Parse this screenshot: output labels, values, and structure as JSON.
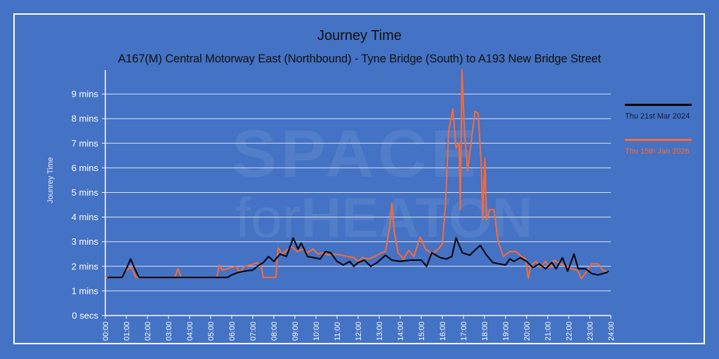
{
  "title": "Journey Time",
  "subtitle": "A167(M) Central Motorway East (Northbound) - Tyne Bridge (South) to A193 New Bridge Street",
  "watermark": {
    "line1": "SPACE",
    "line2_thin": "for",
    "line2_bold": "HEATON"
  },
  "legend": [
    {
      "label": "Thu 21st Mar 2024",
      "color": "#000000"
    },
    {
      "label": "Thu 15th Jan 2026",
      "color": "#ff6a33"
    }
  ],
  "colors": {
    "background": "#4472c4",
    "grid": "#dde3f0",
    "axis": "#ffffff"
  },
  "chart_data": {
    "type": "line",
    "title": "Journey Time",
    "subtitle": "A167(M) Central Motorway East (Northbound) - Tyne Bridge (South) to A193 New Bridge Street",
    "xlabel": "",
    "ylabel": "Jounrey Time",
    "xlim": [
      0,
      24
    ],
    "ylim": [
      0,
      10
    ],
    "grid": true,
    "legend_position": "right",
    "y_ticks": [
      "0 secs",
      "1 mins",
      "2 mins",
      "3 mins",
      "4 mins",
      "5 mins",
      "6 mins",
      "7 mins",
      "8 mins",
      "9 mins"
    ],
    "x_ticks": [
      "00:00",
      "01:00",
      "02:00",
      "03:00",
      "04:00",
      "05:00",
      "06:00",
      "07:00",
      "08:00",
      "09:00",
      "10:00",
      "11:00",
      "12:00",
      "13:00",
      "14:00",
      "15:00",
      "16:00",
      "17:00",
      "18:00",
      "19:00",
      "20:00",
      "21:00",
      "22:00",
      "23:00",
      "24:00"
    ],
    "series": [
      {
        "name": "Thu 21st Mar 2024",
        "color": "#000000",
        "unit": "minutes",
        "points": [
          [
            0.1,
            1.55
          ],
          [
            0.8,
            1.55
          ],
          [
            1.0,
            1.9
          ],
          [
            1.2,
            2.3
          ],
          [
            1.4,
            1.9
          ],
          [
            1.6,
            1.55
          ],
          [
            2.0,
            1.55
          ],
          [
            3.0,
            1.55
          ],
          [
            4.0,
            1.55
          ],
          [
            5.0,
            1.55
          ],
          [
            5.8,
            1.55
          ],
          [
            6.0,
            1.65
          ],
          [
            6.3,
            1.75
          ],
          [
            6.6,
            1.8
          ],
          [
            7.0,
            1.85
          ],
          [
            7.3,
            2.05
          ],
          [
            7.5,
            2.15
          ],
          [
            7.75,
            2.4
          ],
          [
            8.0,
            2.2
          ],
          [
            8.3,
            2.5
          ],
          [
            8.6,
            2.4
          ],
          [
            8.92,
            3.15
          ],
          [
            9.15,
            2.7
          ],
          [
            9.3,
            2.95
          ],
          [
            9.6,
            2.4
          ],
          [
            9.9,
            2.35
          ],
          [
            10.2,
            2.3
          ],
          [
            10.45,
            2.6
          ],
          [
            10.7,
            2.55
          ],
          [
            11.0,
            2.2
          ],
          [
            11.3,
            2.05
          ],
          [
            11.6,
            2.2
          ],
          [
            11.8,
            2.0
          ],
          [
            12.0,
            2.15
          ],
          [
            12.3,
            2.25
          ],
          [
            12.6,
            2.0
          ],
          [
            12.9,
            2.15
          ],
          [
            13.3,
            2.45
          ],
          [
            13.6,
            2.25
          ],
          [
            14.0,
            2.2
          ],
          [
            14.5,
            2.25
          ],
          [
            15.0,
            2.25
          ],
          [
            15.25,
            2.0
          ],
          [
            15.5,
            2.55
          ],
          [
            15.9,
            2.35
          ],
          [
            16.2,
            2.3
          ],
          [
            16.45,
            2.4
          ],
          [
            16.65,
            3.15
          ],
          [
            16.95,
            2.55
          ],
          [
            17.3,
            2.45
          ],
          [
            17.6,
            2.7
          ],
          [
            17.8,
            2.85
          ],
          [
            18.1,
            2.45
          ],
          [
            18.4,
            2.15
          ],
          [
            18.7,
            2.1
          ],
          [
            19.0,
            2.05
          ],
          [
            19.2,
            2.3
          ],
          [
            19.4,
            2.2
          ],
          [
            19.7,
            2.35
          ],
          [
            20.0,
            2.2
          ],
          [
            20.3,
            1.95
          ],
          [
            20.6,
            2.1
          ],
          [
            20.9,
            1.9
          ],
          [
            21.2,
            2.15
          ],
          [
            21.4,
            1.9
          ],
          [
            21.7,
            2.35
          ],
          [
            21.95,
            1.8
          ],
          [
            22.25,
            2.5
          ],
          [
            22.45,
            1.9
          ],
          [
            22.8,
            1.9
          ],
          [
            23.1,
            1.7
          ],
          [
            23.4,
            1.65
          ],
          [
            23.8,
            1.75
          ],
          [
            23.9,
            1.8
          ]
        ]
      },
      {
        "name": "Thu 15th Jan 2026",
        "color": "#ff6a33",
        "unit": "minutes",
        "points": [
          [
            0.0,
            1.6
          ],
          [
            0.1,
            1.55
          ],
          [
            0.8,
            1.55
          ],
          [
            0.95,
            1.8
          ],
          [
            1.1,
            1.9
          ],
          [
            1.25,
            1.95
          ],
          [
            1.45,
            1.55
          ],
          [
            1.7,
            1.55
          ],
          [
            3.3,
            1.55
          ],
          [
            3.45,
            1.9
          ],
          [
            3.6,
            1.55
          ],
          [
            5.3,
            1.55
          ],
          [
            5.4,
            2.05
          ],
          [
            5.55,
            1.85
          ],
          [
            5.8,
            1.9
          ],
          [
            6.0,
            1.95
          ],
          [
            6.2,
            2.0
          ],
          [
            6.4,
            1.75
          ],
          [
            6.6,
            2.0
          ],
          [
            6.9,
            2.05
          ],
          [
            7.2,
            2.15
          ],
          [
            7.4,
            2.0
          ],
          [
            7.5,
            1.55
          ],
          [
            8.1,
            1.55
          ],
          [
            8.2,
            2.75
          ],
          [
            8.4,
            2.5
          ],
          [
            8.6,
            2.65
          ],
          [
            8.85,
            2.8
          ],
          [
            9.1,
            2.6
          ],
          [
            9.4,
            2.7
          ],
          [
            9.6,
            2.55
          ],
          [
            9.85,
            2.7
          ],
          [
            10.1,
            2.5
          ],
          [
            10.35,
            2.55
          ],
          [
            10.6,
            2.45
          ],
          [
            10.9,
            2.5
          ],
          [
            11.2,
            2.45
          ],
          [
            11.5,
            2.4
          ],
          [
            11.8,
            2.35
          ],
          [
            12.0,
            2.2
          ],
          [
            12.2,
            2.35
          ],
          [
            12.5,
            2.3
          ],
          [
            12.8,
            2.4
          ],
          [
            13.1,
            2.55
          ],
          [
            13.3,
            2.6
          ],
          [
            13.5,
            3.6
          ],
          [
            13.6,
            4.55
          ],
          [
            13.72,
            3.4
          ],
          [
            13.9,
            2.55
          ],
          [
            14.15,
            2.3
          ],
          [
            14.4,
            2.65
          ],
          [
            14.65,
            2.4
          ],
          [
            14.95,
            3.2
          ],
          [
            15.2,
            2.7
          ],
          [
            15.5,
            2.5
          ],
          [
            15.8,
            2.7
          ],
          [
            16.0,
            2.9
          ],
          [
            16.15,
            4.5
          ],
          [
            16.3,
            7.5
          ],
          [
            16.5,
            8.4
          ],
          [
            16.65,
            6.8
          ],
          [
            16.8,
            7.0
          ],
          [
            16.85,
            4.3
          ],
          [
            16.93,
            10.0
          ],
          [
            17.05,
            7.5
          ],
          [
            17.2,
            5.9
          ],
          [
            17.35,
            6.9
          ],
          [
            17.55,
            8.3
          ],
          [
            17.7,
            8.2
          ],
          [
            17.85,
            6.1
          ],
          [
            17.92,
            3.9
          ],
          [
            18.02,
            6.4
          ],
          [
            18.1,
            3.9
          ],
          [
            18.25,
            4.3
          ],
          [
            18.45,
            4.3
          ],
          [
            18.65,
            3.0
          ],
          [
            18.9,
            2.4
          ],
          [
            19.2,
            2.6
          ],
          [
            19.5,
            2.6
          ],
          [
            19.75,
            2.4
          ],
          [
            19.95,
            2.3
          ],
          [
            20.08,
            1.5
          ],
          [
            20.2,
            2.05
          ],
          [
            20.45,
            2.2
          ],
          [
            20.65,
            1.95
          ],
          [
            20.9,
            2.2
          ],
          [
            21.1,
            1.95
          ],
          [
            21.3,
            2.25
          ],
          [
            21.6,
            2.1
          ],
          [
            21.9,
            2.0
          ],
          [
            22.1,
            1.9
          ],
          [
            22.4,
            1.85
          ],
          [
            22.6,
            1.5
          ],
          [
            22.9,
            1.85
          ],
          [
            23.1,
            2.1
          ],
          [
            23.4,
            2.1
          ],
          [
            23.6,
            1.85
          ],
          [
            23.9,
            1.75
          ]
        ]
      }
    ]
  }
}
